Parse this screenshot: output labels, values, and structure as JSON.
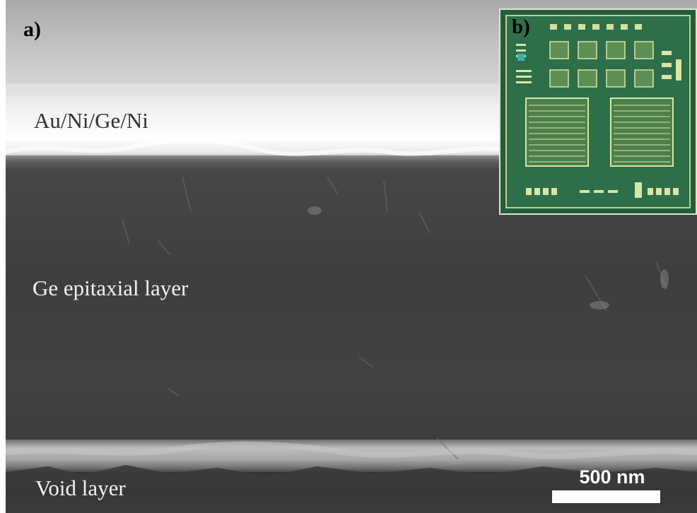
{
  "panels": {
    "a": {
      "letter": "a)",
      "layers": {
        "metal": "Au/Ni/Ge/Ni",
        "epitaxial": "Ge epitaxial layer",
        "void": "Void layer"
      },
      "scale_bar": "500 nm"
    },
    "b": {
      "letter": "b)"
    }
  },
  "colors": {
    "chip_green": "#2a6b47",
    "chip_trace": "#d8e6a6"
  }
}
